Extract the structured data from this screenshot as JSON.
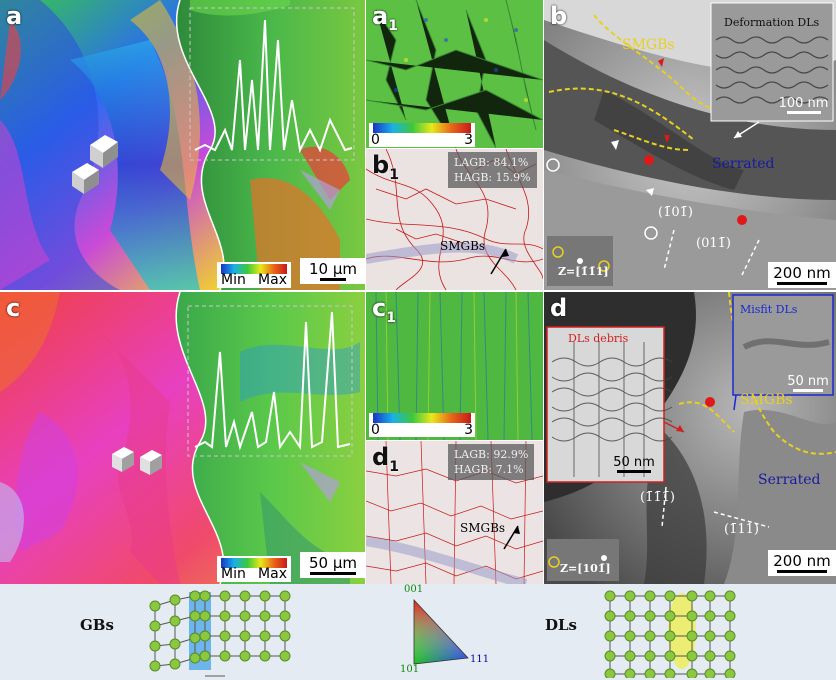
{
  "panels": {
    "a": {
      "label": "a",
      "legend_min": "Min",
      "legend_max": "Max",
      "scale": "10 μm"
    },
    "a1": {
      "label": "a",
      "sub": "1",
      "ticks": [
        "0",
        "3"
      ]
    },
    "b1": {
      "label": "b",
      "sub": "1",
      "lagb": "LAGB: 84.1%",
      "hagb": "HAGB: 15.9%",
      "smgbs": "SMGBs"
    },
    "b": {
      "label": "b",
      "smgbs": "SMGBs",
      "inset_title": "Deformation DLs",
      "inset_scale": "100 nm",
      "serrated": "Serrated",
      "plane1": "(1̄01̄)",
      "plane2": "(011̄)",
      "zone": "Z=[1̄1̄1]",
      "scale": "200 nm"
    },
    "c": {
      "label": "c",
      "legend_min": "Min",
      "legend_max": "Max",
      "scale": "50 μm"
    },
    "c1": {
      "label": "c",
      "sub": "1",
      "ticks": [
        "0",
        "3"
      ]
    },
    "d1": {
      "label": "d",
      "sub": "1",
      "lagb": "LAGB: 92.9%",
      "hagb": "HAGB: 7.1%",
      "smgbs": "SMGBs"
    },
    "d": {
      "label": "d",
      "smgbs": "SMGBs",
      "misfit_title": "Misfit DLs",
      "misfit_scale": "50 nm",
      "debris_title": "DLs debris",
      "debris_scale": "50 nm",
      "serrated": "Serrated",
      "plane1": "(1̄1̄1̄)",
      "plane2": "(1̄11)",
      "zone": "Z=[101̄]",
      "scale": "200 nm"
    }
  },
  "bottom": {
    "gbs": "GBs",
    "dls": "DLs",
    "triangle": {
      "top": "001",
      "left": "101",
      "right": "111"
    }
  }
}
